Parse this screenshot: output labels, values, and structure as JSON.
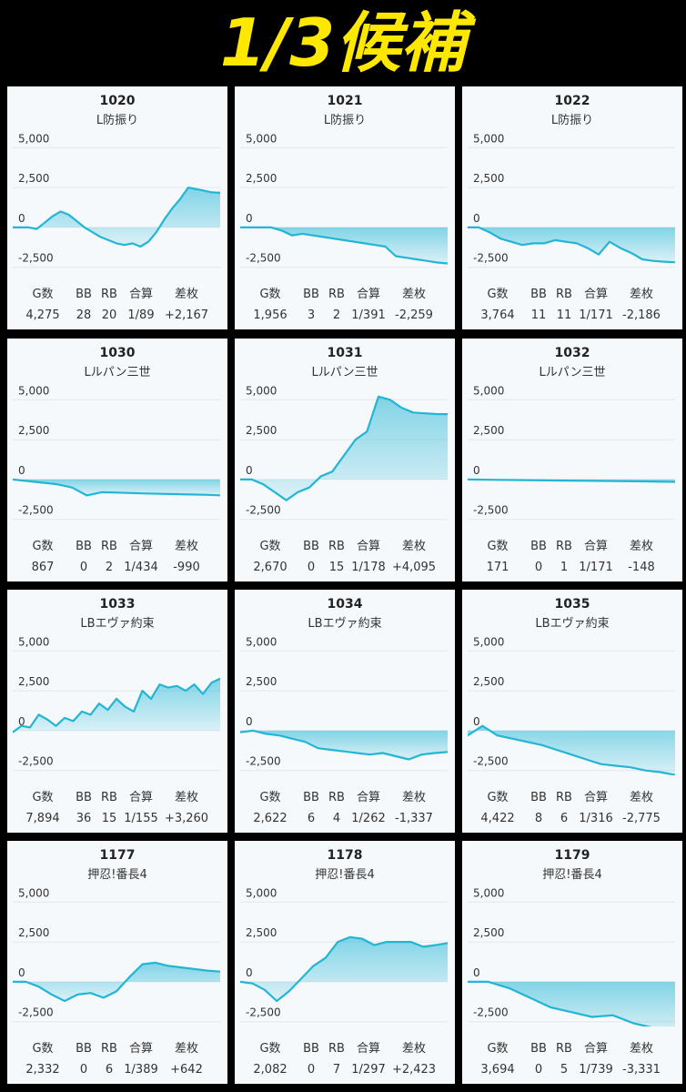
{
  "title": "1/3候補",
  "chart_data": [
    {
      "type": "line",
      "title": "1020",
      "subtitle": "L防振り",
      "series": [
        {
          "color": "#22b5d4",
          "values": [
            0,
            0,
            0,
            -100,
            300,
            700,
            1000,
            800,
            400,
            0,
            -300,
            -600,
            -800,
            -1000,
            -1100,
            -1000,
            -1200,
            -900,
            -300,
            500,
            1200,
            1800,
            2500,
            2400,
            2300,
            2200,
            2167
          ]
        }
      ],
      "ylim": [
        -2800,
        5700
      ],
      "yticks": [
        {
          "value": 5000,
          "label": "5,000"
        },
        {
          "value": 2500,
          "label": "2,500"
        },
        0,
        {
          "value": -2500,
          "label": "-2,500"
        }
      ],
      "stats": {
        "headers": [
          "G数",
          "BB",
          "RB",
          "合算",
          "差枚"
        ],
        "values": [
          "4,275",
          "28",
          "20",
          "1/89",
          "+2,167"
        ]
      }
    },
    {
      "type": "line",
      "title": "1021",
      "subtitle": "L防振り",
      "series": [
        {
          "color": "#22b5d4",
          "values": [
            0,
            0,
            0,
            0,
            -200,
            -500,
            -400,
            -500,
            -600,
            -700,
            -800,
            -900,
            -1000,
            -1100,
            -1200,
            -1800,
            -1900,
            -2000,
            -2100,
            -2200,
            -2259
          ]
        }
      ],
      "ylim": [
        -2800,
        5700
      ],
      "yticks": [
        {
          "value": 5000,
          "label": "5,000"
        },
        {
          "value": 2500,
          "label": "2,500"
        },
        0,
        {
          "value": -2500,
          "label": "-2,500"
        }
      ],
      "stats": {
        "headers": [
          "G数",
          "BB",
          "RB",
          "合算",
          "差枚"
        ],
        "values": [
          "1,956",
          "3",
          "2",
          "1/391",
          "-2,259"
        ]
      }
    },
    {
      "type": "line",
      "title": "1022",
      "subtitle": "L防振り",
      "series": [
        {
          "color": "#22b5d4",
          "values": [
            0,
            0,
            -300,
            -700,
            -900,
            -1100,
            -1000,
            -1000,
            -800,
            -900,
            -1000,
            -1300,
            -1700,
            -900,
            -1300,
            -1600,
            -2000,
            -2100,
            -2150,
            -2186
          ]
        }
      ],
      "ylim": [
        -2800,
        5700
      ],
      "yticks": [
        {
          "value": 5000,
          "label": "5,000"
        },
        {
          "value": 2500,
          "label": "2,500"
        },
        0,
        {
          "value": -2500,
          "label": "-2,500"
        }
      ],
      "stats": {
        "headers": [
          "G数",
          "BB",
          "RB",
          "合算",
          "差枚"
        ],
        "values": [
          "3,764",
          "11",
          "11",
          "1/171",
          "-2,186"
        ]
      }
    },
    {
      "type": "line",
      "title": "1030",
      "subtitle": "Lルパン三世",
      "series": [
        {
          "color": "#22b5d4",
          "values": [
            0,
            -100,
            -200,
            -300,
            -500,
            -1000,
            -800,
            -820,
            -850,
            -880,
            -900,
            -920,
            -940,
            -960,
            -990
          ]
        }
      ],
      "ylim": [
        -2800,
        5700
      ],
      "yticks": [
        {
          "value": 5000,
          "label": "5,000"
        },
        {
          "value": 2500,
          "label": "2,500"
        },
        0,
        {
          "value": -2500,
          "label": "-2,500"
        }
      ],
      "stats": {
        "headers": [
          "G数",
          "BB",
          "RB",
          "合算",
          "差枚"
        ],
        "values": [
          "867",
          "0",
          "2",
          "1/434",
          "-990"
        ]
      }
    },
    {
      "type": "line",
      "title": "1031",
      "subtitle": "Lルパン三世",
      "series": [
        {
          "color": "#22b5d4",
          "values": [
            0,
            0,
            -300,
            -800,
            -1300,
            -800,
            -500,
            200,
            500,
            1500,
            2500,
            3000,
            5200,
            5000,
            4500,
            4200,
            4150,
            4100,
            4095
          ]
        }
      ],
      "ylim": [
        -2800,
        5700
      ],
      "yticks": [
        {
          "value": 5000,
          "label": "5,000"
        },
        {
          "value": 2500,
          "label": "2,500"
        },
        0,
        {
          "value": -2500,
          "label": "-2,500"
        }
      ],
      "stats": {
        "headers": [
          "G数",
          "BB",
          "RB",
          "合算",
          "差枚"
        ],
        "values": [
          "2,670",
          "0",
          "15",
          "1/178",
          "+4,095"
        ]
      }
    },
    {
      "type": "line",
      "title": "1032",
      "subtitle": "Lルパン三世",
      "series": [
        {
          "color": "#22b5d4",
          "values": [
            0,
            -20,
            -40,
            -60,
            -80,
            -100,
            -120,
            -148
          ]
        }
      ],
      "ylim": [
        -2800,
        5700
      ],
      "yticks": [
        {
          "value": 5000,
          "label": "5,000"
        },
        {
          "value": 2500,
          "label": "2,500"
        },
        0,
        {
          "value": -2500,
          "label": "-2,500"
        }
      ],
      "stats": {
        "headers": [
          "G数",
          "BB",
          "RB",
          "合算",
          "差枚"
        ],
        "values": [
          "171",
          "0",
          "1",
          "1/171",
          "-148"
        ]
      }
    },
    {
      "type": "line",
      "title": "1033",
      "subtitle": "LBエヴァ約束",
      "series": [
        {
          "color": "#22b5d4",
          "values": [
            -100,
            300,
            200,
            1000,
            700,
            300,
            800,
            600,
            1200,
            1000,
            1700,
            1300,
            2000,
            1500,
            1200,
            2500,
            2000,
            2900,
            2700,
            2800,
            2500,
            2900,
            2300,
            3000,
            3260
          ]
        }
      ],
      "ylim": [
        -2800,
        5700
      ],
      "yticks": [
        {
          "value": 5000,
          "label": "5,000"
        },
        {
          "value": 2500,
          "label": "2,500"
        },
        0,
        {
          "value": -2500,
          "label": "-2,500"
        }
      ],
      "stats": {
        "headers": [
          "G数",
          "BB",
          "RB",
          "合算",
          "差枚"
        ],
        "values": [
          "7,894",
          "36",
          "15",
          "1/155",
          "+3,260"
        ]
      }
    },
    {
      "type": "line",
      "title": "1034",
      "subtitle": "LBエヴァ約束",
      "series": [
        {
          "color": "#22b5d4",
          "values": [
            -100,
            0,
            -200,
            -300,
            -500,
            -700,
            -1100,
            -1200,
            -1300,
            -1400,
            -1500,
            -1400,
            -1600,
            -1800,
            -1500,
            -1400,
            -1337
          ]
        }
      ],
      "ylim": [
        -2800,
        5700
      ],
      "yticks": [
        {
          "value": 5000,
          "label": "5,000"
        },
        {
          "value": 2500,
          "label": "2,500"
        },
        0,
        {
          "value": -2500,
          "label": "-2,500"
        }
      ],
      "stats": {
        "headers": [
          "G数",
          "BB",
          "RB",
          "合算",
          "差枚"
        ],
        "values": [
          "2,622",
          "6",
          "4",
          "1/262",
          "-1,337"
        ]
      }
    },
    {
      "type": "line",
      "title": "1035",
      "subtitle": "LBエヴァ約束",
      "series": [
        {
          "color": "#22b5d4",
          "values": [
            -300,
            300,
            -300,
            -500,
            -700,
            -900,
            -1200,
            -1500,
            -1800,
            -2100,
            -2200,
            -2300,
            -2500,
            -2600,
            -2775
          ]
        }
      ],
      "ylim": [
        -2800,
        5700
      ],
      "yticks": [
        {
          "value": 5000,
          "label": "5,000"
        },
        {
          "value": 2500,
          "label": "2,500"
        },
        0,
        {
          "value": -2500,
          "label": "-2,500"
        }
      ],
      "stats": {
        "headers": [
          "G数",
          "BB",
          "RB",
          "合算",
          "差枚"
        ],
        "values": [
          "4,422",
          "8",
          "6",
          "1/316",
          "-2,775"
        ]
      }
    },
    {
      "type": "line",
      "title": "1177",
      "subtitle": "押忍!番長4",
      "series": [
        {
          "color": "#22b5d4",
          "values": [
            0,
            0,
            -300,
            -800,
            -1200,
            -800,
            -700,
            -1000,
            -600,
            300,
            1100,
            1200,
            1000,
            900,
            800,
            700,
            642
          ]
        }
      ],
      "ylim": [
        -2800,
        5700
      ],
      "yticks": [
        {
          "value": 5000,
          "label": "5,000"
        },
        {
          "value": 2500,
          "label": "2,500"
        },
        0,
        {
          "value": -2500,
          "label": "-2,500"
        }
      ],
      "stats": {
        "headers": [
          "G数",
          "BB",
          "RB",
          "合算",
          "差枚"
        ],
        "values": [
          "2,332",
          "0",
          "6",
          "1/389",
          "+642"
        ]
      }
    },
    {
      "type": "line",
      "title": "1178",
      "subtitle": "押忍!番長4",
      "series": [
        {
          "color": "#22b5d4",
          "values": [
            0,
            -100,
            -500,
            -1200,
            -600,
            200,
            1000,
            1500,
            2500,
            2800,
            2700,
            2300,
            2500,
            2500,
            2500,
            2200,
            2300,
            2423
          ]
        }
      ],
      "ylim": [
        -2800,
        5700
      ],
      "yticks": [
        {
          "value": 5000,
          "label": "5,000"
        },
        {
          "value": 2500,
          "label": "2,500"
        },
        0,
        {
          "value": -2500,
          "label": "-2,500"
        }
      ],
      "stats": {
        "headers": [
          "G数",
          "BB",
          "RB",
          "合算",
          "差枚"
        ],
        "values": [
          "2,082",
          "0",
          "7",
          "1/297",
          "+2,423"
        ]
      }
    },
    {
      "type": "line",
      "title": "1179",
      "subtitle": "押忍!番長4",
      "series": [
        {
          "color": "#22b5d4",
          "values": [
            0,
            0,
            -400,
            -1000,
            -1600,
            -1900,
            -2200,
            -2100,
            -2600,
            -2900,
            -3331
          ]
        }
      ],
      "ylim": [
        -2800,
        5700
      ],
      "yticks": [
        {
          "value": 5000,
          "label": "5,000"
        },
        {
          "value": 2500,
          "label": "2,500"
        },
        0,
        {
          "value": -2500,
          "label": "-2,500"
        }
      ],
      "stats": {
        "headers": [
          "G数",
          "BB",
          "RB",
          "合算",
          "差枚"
        ],
        "values": [
          "3,694",
          "0",
          "5",
          "1/739",
          "-3,331"
        ]
      }
    }
  ]
}
